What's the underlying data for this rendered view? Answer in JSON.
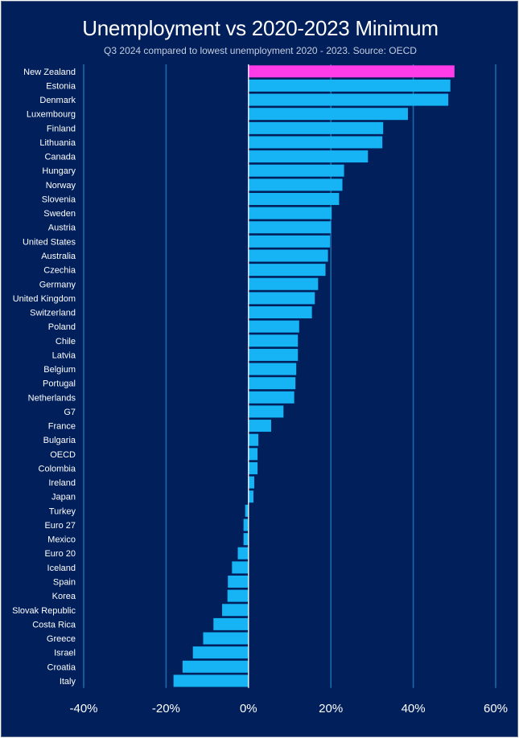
{
  "chart_data": {
    "type": "bar",
    "orientation": "horizontal",
    "title": "Unemployment vs 2020-2023 Minimum",
    "subtitle": "Q3 2024  compared to lowest unemployment 2020 - 2023.  Source: OECD",
    "xlim": [
      -40,
      60
    ],
    "xticks": [
      -40,
      -20,
      0,
      20,
      40,
      60
    ],
    "xtick_labels": [
      "-40%",
      "-20%",
      "0%",
      "20%",
      "40%",
      "60%"
    ],
    "grid": "vertical",
    "colors": {
      "default": "#16b4f4",
      "highlight": "#ff3ce8",
      "background": "#011f5b",
      "gridline": "#1a6aa8",
      "zero_line": "#ffffff"
    },
    "highlight": "New Zealand",
    "categories": [
      "New Zealand",
      "Estonia",
      "Denmark",
      "Luxembourg",
      "Finland",
      "Lithuania",
      "Canada",
      "Hungary",
      "Norway",
      "Slovenia",
      "Sweden",
      "Austria",
      "United States",
      "Australia",
      "Czechia",
      "Germany",
      "United Kingdom",
      "Switzerland",
      "Poland",
      "Chile",
      "Latvia",
      "Belgium",
      "Portugal",
      "Netherlands",
      "G7",
      "France",
      "Bulgaria",
      "OECD",
      "Colombia",
      "Ireland",
      "Japan",
      "Turkey",
      "Euro 27",
      "Mexico",
      "Euro 20",
      "Iceland",
      "Spain",
      "Korea",
      "Slovak Republic",
      "Costa Rica",
      "Greece",
      "Israel",
      "Croatia",
      "Italy"
    ],
    "values": [
      50.0,
      49.0,
      48.5,
      38.7,
      32.7,
      32.5,
      29.0,
      23.2,
      22.8,
      22.0,
      20.2,
      20.0,
      19.8,
      19.3,
      18.7,
      16.9,
      16.1,
      15.4,
      12.3,
      12.0,
      12.0,
      11.6,
      11.4,
      11.1,
      8.5,
      5.5,
      2.4,
      2.2,
      2.2,
      1.4,
      1.2,
      -0.8,
      -1.2,
      -1.2,
      -2.6,
      -4.0,
      -5.0,
      -5.1,
      -6.4,
      -8.5,
      -11.0,
      -13.5,
      -16.0,
      -18.2
    ]
  }
}
